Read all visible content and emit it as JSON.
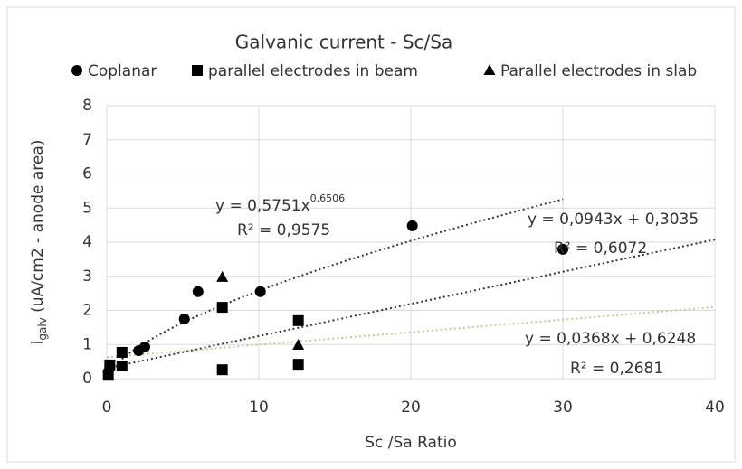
{
  "chart_data": {
    "type": "scatter",
    "title": "Galvanic current - Sc/Sa",
    "xlabel": "Sc /Sa Ratio",
    "ylabel_main": "i",
    "ylabel_sub": "galv",
    "ylabel_rest": " (uA/cm2 - anode area)",
    "xlim": [
      0,
      40
    ],
    "xticks": [
      0,
      10,
      20,
      30,
      40
    ],
    "ylim": [
      0,
      8
    ],
    "yticks": [
      0,
      1,
      2,
      3,
      4,
      5,
      6,
      7,
      8
    ],
    "grid": true,
    "legend": "top",
    "series": [
      {
        "name": "Coplanar",
        "marker": "circle",
        "color": "#000000",
        "x": [
          0.1,
          0.2,
          2.1,
          2.5,
          5.1,
          6,
          10.1,
          20.1,
          30
        ],
        "values": [
          0.2,
          0.35,
          0.82,
          0.93,
          1.75,
          2.55,
          2.55,
          4.48,
          3.79
        ]
      },
      {
        "name": "parallel electrodes in beam",
        "marker": "square",
        "color": "#000000",
        "x": [
          0.1,
          0.2,
          1,
          1,
          7.6,
          7.6,
          12.6,
          12.6
        ],
        "values": [
          0.1,
          0.4,
          0.77,
          0.37,
          2.09,
          0.26,
          1.7,
          0.42
        ]
      },
      {
        "name": "Parallel electrodes in slab",
        "marker": "triangle",
        "color": "#000000",
        "x": [
          7.6,
          12.6
        ],
        "values": [
          2.97,
          0.98
        ]
      }
    ],
    "trendlines": [
      {
        "kind": "power",
        "coefficient": 0.5751,
        "exponent": 0.6506,
        "x_range": [
          1,
          30
        ],
        "color": "#333333",
        "equation": "y = 0,5751x",
        "exponent_label": "0,6506",
        "r2": "R² = 0,9575"
      },
      {
        "kind": "linear",
        "slope": 0.0943,
        "intercept": 0.3035,
        "x_range": [
          0,
          40
        ],
        "color": "#333333",
        "equation": "y = 0,0943x + 0,3035",
        "r2": "R² = 0,6072"
      },
      {
        "kind": "linear",
        "slope": 0.0368,
        "intercept": 0.6248,
        "x_range": [
          0,
          40
        ],
        "color": "#c8c89a",
        "equation": "y = 0,0368x + 0,6248",
        "r2": "R² = 0,2681"
      }
    ]
  }
}
